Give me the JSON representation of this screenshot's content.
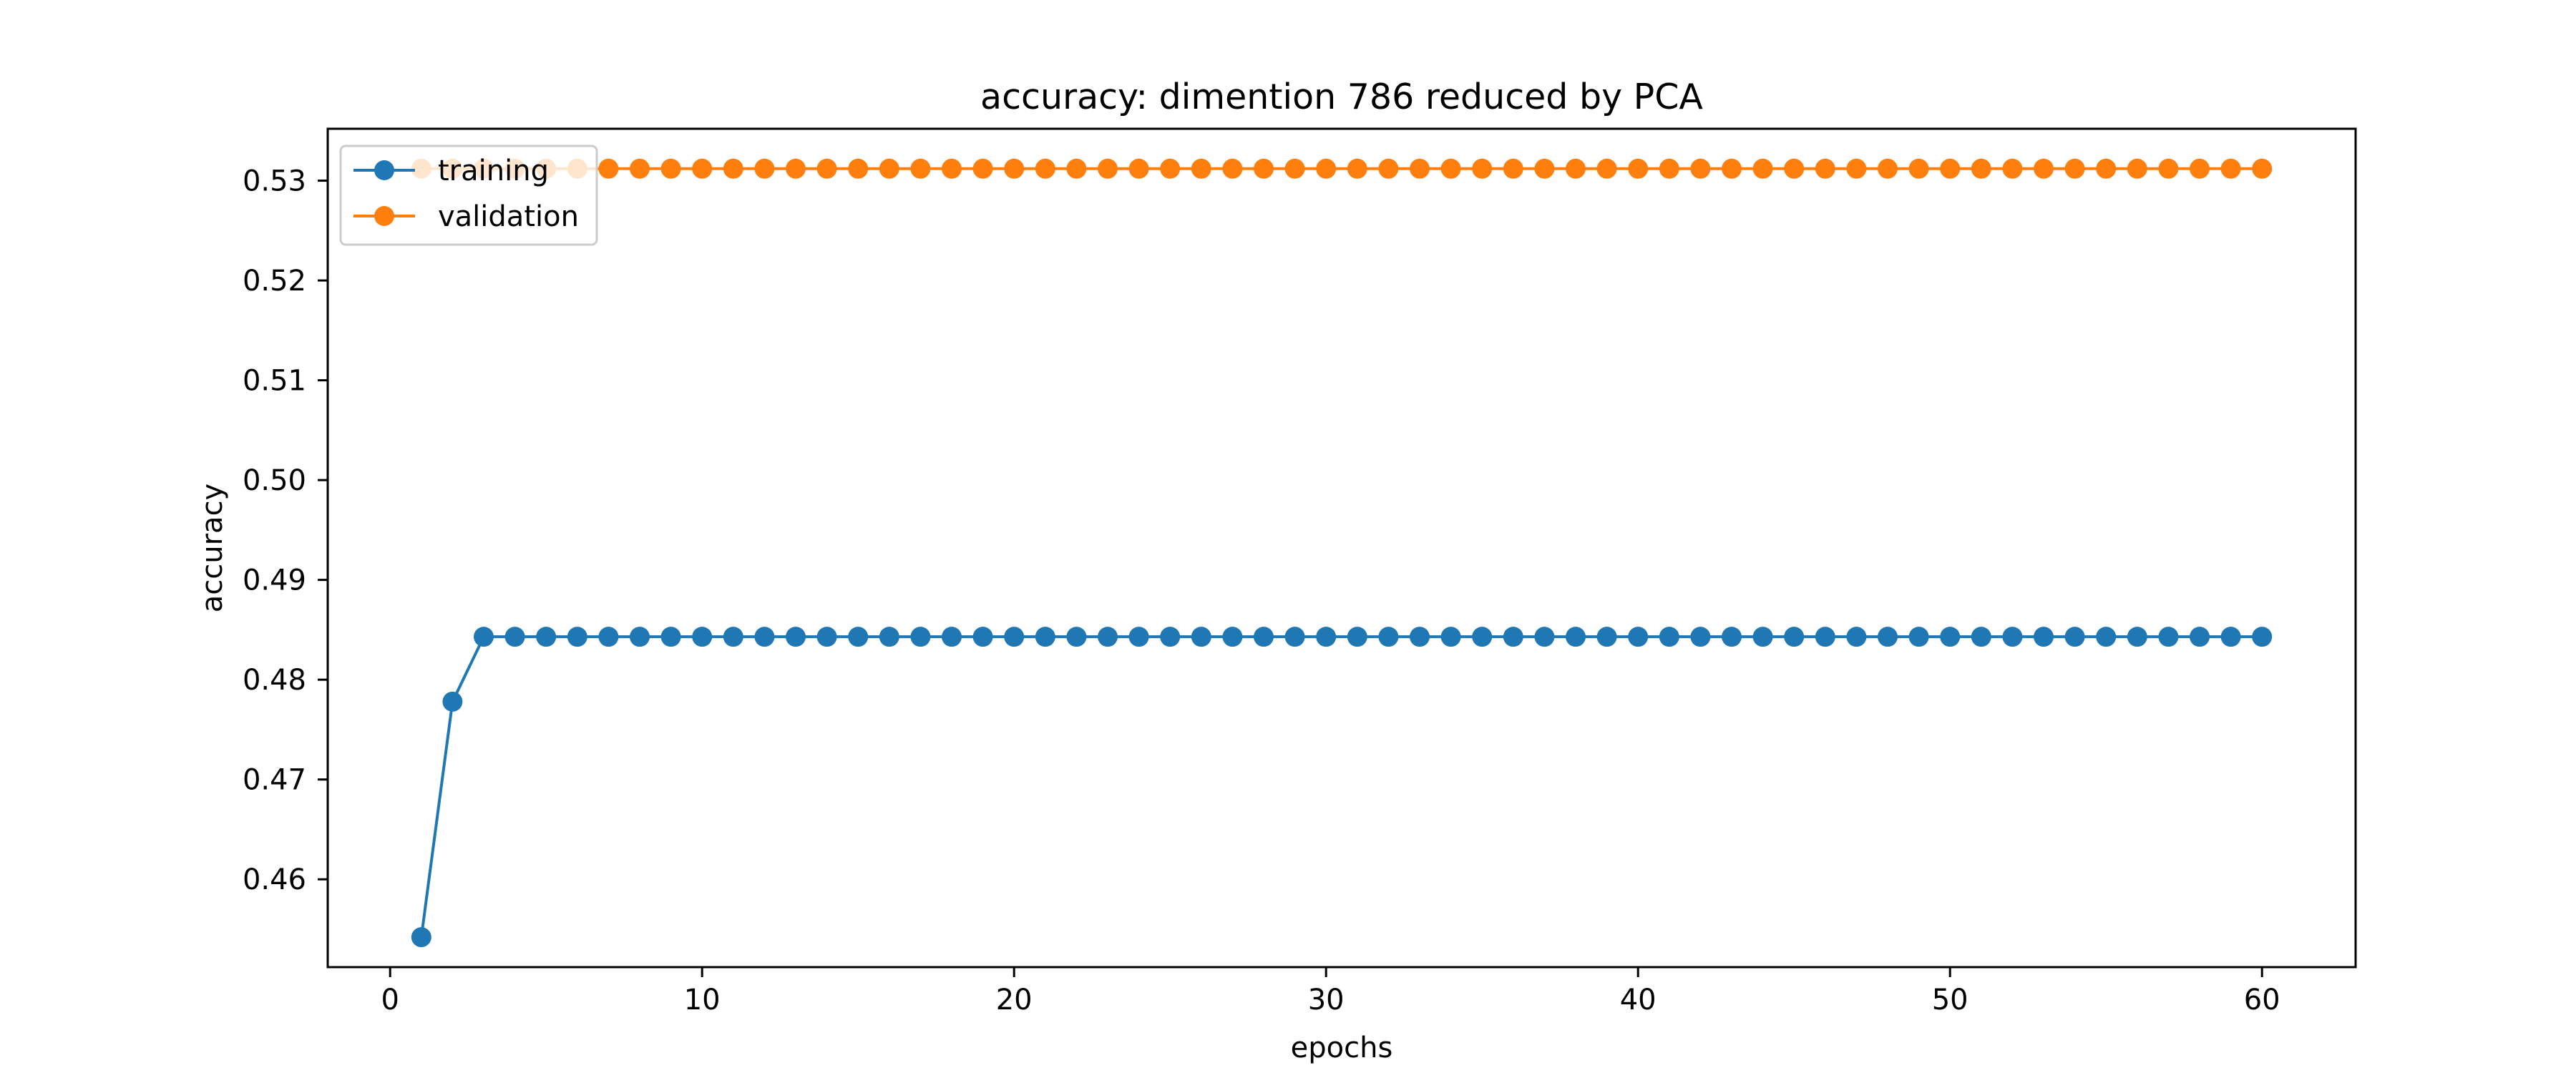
{
  "chart_data": {
    "type": "line",
    "title": "accuracy: dimention 786 reduced by PCA",
    "xlabel": "epochs",
    "ylabel": "accuracy",
    "xlim": [
      -2,
      63
    ],
    "ylim": [
      0.4512,
      0.5352
    ],
    "xticks": [
      0,
      10,
      20,
      30,
      40,
      50,
      60
    ],
    "xtick_labels": [
      "0",
      "10",
      "20",
      "30",
      "40",
      "50",
      "60"
    ],
    "yticks": [
      0.46,
      0.47,
      0.48,
      0.49,
      0.5,
      0.51,
      0.52,
      0.53
    ],
    "ytick_labels": [
      "0.46",
      "0.47",
      "0.48",
      "0.49",
      "0.50",
      "0.51",
      "0.52",
      "0.53"
    ],
    "grid": false,
    "legend_position": "upper-left",
    "x": [
      1,
      2,
      3,
      4,
      5,
      6,
      7,
      8,
      9,
      10,
      11,
      12,
      13,
      14,
      15,
      16,
      17,
      18,
      19,
      20,
      21,
      22,
      23,
      24,
      25,
      26,
      27,
      28,
      29,
      30,
      31,
      32,
      33,
      34,
      35,
      36,
      37,
      38,
      39,
      40,
      41,
      42,
      43,
      44,
      45,
      46,
      47,
      48,
      49,
      50,
      51,
      52,
      53,
      54,
      55,
      56,
      57,
      58,
      59,
      60
    ],
    "series": [
      {
        "name": "training",
        "color": "#1f77b4",
        "values": [
          0.4542,
          0.4778,
          0.4843,
          0.4843,
          0.4843,
          0.4843,
          0.4843,
          0.4843,
          0.4843,
          0.4843,
          0.4843,
          0.4843,
          0.4843,
          0.4843,
          0.4843,
          0.4843,
          0.4843,
          0.4843,
          0.4843,
          0.4843,
          0.4843,
          0.4843,
          0.4843,
          0.4843,
          0.4843,
          0.4843,
          0.4843,
          0.4843,
          0.4843,
          0.4843,
          0.4843,
          0.4843,
          0.4843,
          0.4843,
          0.4843,
          0.4843,
          0.4843,
          0.4843,
          0.4843,
          0.4843,
          0.4843,
          0.4843,
          0.4843,
          0.4843,
          0.4843,
          0.4843,
          0.4843,
          0.4843,
          0.4843,
          0.4843,
          0.4843,
          0.4843,
          0.4843,
          0.4843,
          0.4843,
          0.4843,
          0.4843,
          0.4843,
          0.4843,
          0.4843
        ]
      },
      {
        "name": "validation",
        "color": "#ff7f0e",
        "values": [
          0.5312,
          0.5312,
          0.5312,
          0.5312,
          0.5312,
          0.5312,
          0.5312,
          0.5312,
          0.5312,
          0.5312,
          0.5312,
          0.5312,
          0.5312,
          0.5312,
          0.5312,
          0.5312,
          0.5312,
          0.5312,
          0.5312,
          0.5312,
          0.5312,
          0.5312,
          0.5312,
          0.5312,
          0.5312,
          0.5312,
          0.5312,
          0.5312,
          0.5312,
          0.5312,
          0.5312,
          0.5312,
          0.5312,
          0.5312,
          0.5312,
          0.5312,
          0.5312,
          0.5312,
          0.5312,
          0.5312,
          0.5312,
          0.5312,
          0.5312,
          0.5312,
          0.5312,
          0.5312,
          0.5312,
          0.5312,
          0.5312,
          0.5312,
          0.5312,
          0.5312,
          0.5312,
          0.5312,
          0.5312,
          0.5312,
          0.5312,
          0.5312,
          0.5312,
          0.5312
        ]
      }
    ]
  }
}
